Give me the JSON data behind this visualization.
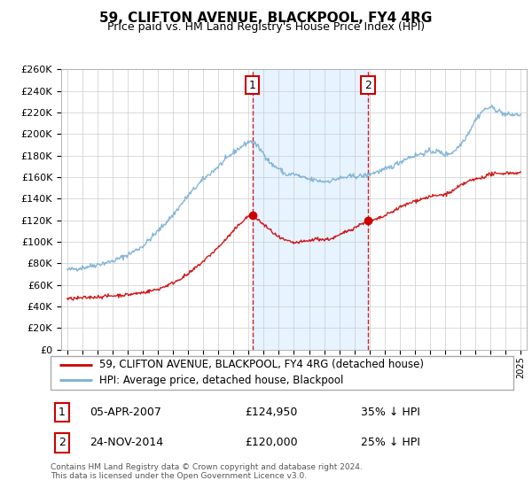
{
  "title": "59, CLIFTON AVENUE, BLACKPOOL, FY4 4RG",
  "subtitle": "Price paid vs. HM Land Registry's House Price Index (HPI)",
  "legend_line1": "59, CLIFTON AVENUE, BLACKPOOL, FY4 4RG (detached house)",
  "legend_line2": "HPI: Average price, detached house, Blackpool",
  "annotation1_date": "05-APR-2007",
  "annotation1_price": "£124,950",
  "annotation1_hpi": "35% ↓ HPI",
  "annotation2_date": "24-NOV-2014",
  "annotation2_price": "£120,000",
  "annotation2_hpi": "25% ↓ HPI",
  "footer": "Contains HM Land Registry data © Crown copyright and database right 2024.\nThis data is licensed under the Open Government Licence v3.0.",
  "transaction1_year": 2007.26,
  "transaction1_value": 124950,
  "transaction2_year": 2014.9,
  "transaction2_value": 120000,
  "hpi_color": "#7ab0d4",
  "property_color": "#cc0000",
  "vline_color": "#cc0000",
  "shade_color": "#ddeeff",
  "ylim": [
    0,
    260000
  ],
  "xlim_start": 1994.6,
  "xlim_end": 2025.4,
  "hpi_anchors_x": [
    1995,
    1996,
    1997,
    1998,
    1999,
    2000,
    2001,
    2002,
    2003,
    2004,
    2005,
    2006,
    2007.0,
    2007.26,
    2007.5,
    2008,
    2008.5,
    2009,
    2009.5,
    2010,
    2010.5,
    2011,
    2011.5,
    2012,
    2012.5,
    2013,
    2013.5,
    2014,
    2014.5,
    2014.9,
    2015,
    2015.5,
    2016,
    2016.5,
    2017,
    2017.5,
    2018,
    2018.5,
    2019,
    2019.5,
    2020,
    2020.5,
    2021,
    2021.5,
    2022,
    2022.5,
    2023,
    2023.5,
    2024,
    2024.5,
    2025
  ],
  "hpi_anchors_y": [
    74000,
    76000,
    79000,
    82000,
    88000,
    96000,
    110000,
    125000,
    143000,
    158000,
    170000,
    183000,
    193000,
    193000,
    190000,
    182000,
    172000,
    168000,
    162000,
    163000,
    160000,
    158000,
    157000,
    156000,
    157000,
    159000,
    160000,
    161000,
    161000,
    162000,
    163000,
    165000,
    167000,
    170000,
    174000,
    178000,
    180000,
    182000,
    184000,
    184000,
    181000,
    183000,
    190000,
    200000,
    213000,
    222000,
    225000,
    222000,
    218000,
    218000,
    218000
  ],
  "prop_anchors_x": [
    1995,
    1996,
    1997,
    1998,
    1999,
    2000,
    2001,
    2002,
    2003,
    2004,
    2005,
    2006,
    2006.5,
    2007.0,
    2007.26,
    2007.5,
    2008,
    2008.5,
    2009,
    2009.5,
    2010,
    2010.5,
    2011,
    2011.5,
    2012,
    2012.5,
    2013,
    2013.5,
    2014,
    2014.5,
    2014.9,
    2015,
    2015.5,
    2016,
    2016.5,
    2017,
    2017.5,
    2018,
    2018.5,
    2019,
    2019.5,
    2020,
    2020.5,
    2021,
    2021.5,
    2022,
    2022.5,
    2023,
    2023.5,
    2024,
    2024.5,
    2025
  ],
  "prop_anchors_y": [
    47000,
    48000,
    49000,
    50000,
    51000,
    53000,
    56000,
    62000,
    70000,
    82000,
    95000,
    110000,
    118000,
    124000,
    124950,
    122000,
    116000,
    110000,
    104000,
    101000,
    99000,
    100000,
    101000,
    103000,
    102000,
    103000,
    106000,
    110000,
    113000,
    117000,
    120000,
    119000,
    121000,
    124000,
    128000,
    132000,
    135000,
    138000,
    140000,
    142000,
    143000,
    144000,
    147000,
    152000,
    156000,
    158000,
    160000,
    163000,
    163000,
    164000,
    164000,
    164000
  ]
}
